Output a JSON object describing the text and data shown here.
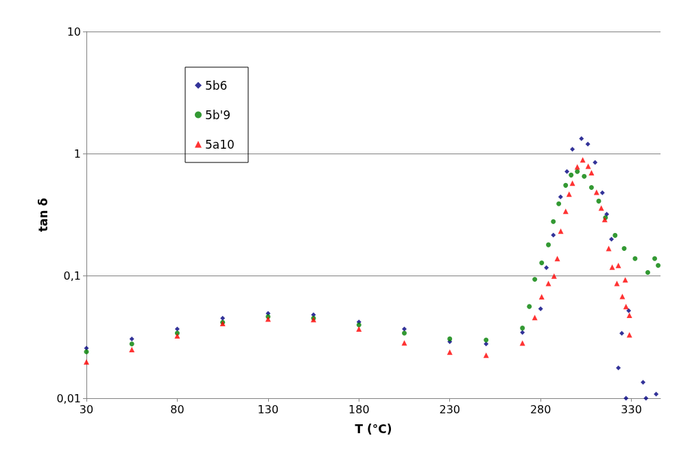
{
  "chart_data": {
    "type": "scatter",
    "xlabel": "T (°C)",
    "ylabel": "tan δ",
    "xlim": [
      30,
      346
    ],
    "xticks": [
      30,
      80,
      130,
      180,
      230,
      280,
      330
    ],
    "ylim": [
      0.01,
      10
    ],
    "yticks": [
      {
        "value": 0.01,
        "label": "0,01"
      },
      {
        "value": 0.1,
        "label": "0,1"
      },
      {
        "value": 1,
        "label": "1"
      },
      {
        "value": 10,
        "label": "10"
      }
    ],
    "log": "y",
    "grid": "y",
    "legend": "top left",
    "series": [
      {
        "name": "5b6",
        "color": "#000080",
        "marker": "diamond",
        "x": [
          30,
          55,
          80,
          105,
          130,
          155,
          180,
          205,
          230,
          250,
          270,
          280,
          283.2,
          287,
          291,
          294.5,
          297.5,
          302.5,
          306,
          310,
          314,
          316.4,
          319,
          322.8,
          324.7,
          327,
          328.5,
          336.4,
          338,
          343.6
        ],
        "values": [
          0.0257,
          0.0306,
          0.0369,
          0.0451,
          0.0495,
          0.0482,
          0.042,
          0.0369,
          0.029,
          0.0278,
          0.0345,
          0.054,
          0.117,
          0.216,
          0.444,
          0.715,
          1.09,
          1.33,
          1.2,
          0.85,
          0.48,
          0.32,
          0.2,
          0.0177,
          0.034,
          0.01,
          0.052,
          0.0135,
          0.01,
          0.0108
        ]
      },
      {
        "name": "5b'9",
        "color": "#008000",
        "marker": "circle",
        "x": [
          30,
          55,
          80,
          105,
          130,
          155,
          180,
          205,
          230,
          250,
          270,
          273.8,
          276.8,
          280.6,
          284.3,
          287,
          290,
          293.8,
          296.8,
          300.2,
          304,
          308,
          312,
          315.7,
          321,
          326,
          332,
          339,
          342.8,
          344.7
        ],
        "values": [
          0.024,
          0.0278,
          0.0341,
          0.0418,
          0.0465,
          0.0451,
          0.0398,
          0.0341,
          0.0306,
          0.03,
          0.0375,
          0.0563,
          0.094,
          0.128,
          0.18,
          0.279,
          0.39,
          0.552,
          0.67,
          0.715,
          0.654,
          0.53,
          0.41,
          0.3,
          0.215,
          0.168,
          0.139,
          0.107,
          0.139,
          0.122
        ]
      },
      {
        "name": "5a10",
        "color": "#ff0000",
        "marker": "triangle",
        "x": [
          30,
          55,
          80,
          105,
          130,
          155,
          180,
          205,
          230,
          250,
          270,
          276.8,
          280.6,
          284.3,
          287.4,
          289.2,
          291.1,
          293.8,
          295.7,
          297.5,
          300.2,
          303.2,
          306.2,
          308,
          310.8,
          313.4,
          315.3,
          317.5,
          319.4,
          322,
          322.8,
          325,
          326.6,
          327,
          328.9,
          328.9
        ],
        "values": [
          0.0198,
          0.025,
          0.0324,
          0.0408,
          0.0445,
          0.044,
          0.0369,
          0.0284,
          0.0238,
          0.0225,
          0.0283,
          0.0458,
          0.0676,
          0.087,
          0.1,
          0.139,
          0.233,
          0.338,
          0.467,
          0.575,
          0.78,
          0.89,
          0.79,
          0.7,
          0.485,
          0.36,
          0.29,
          0.168,
          0.118,
          0.087,
          0.122,
          0.068,
          0.093,
          0.0563,
          0.0477,
          0.033
        ]
      }
    ]
  }
}
